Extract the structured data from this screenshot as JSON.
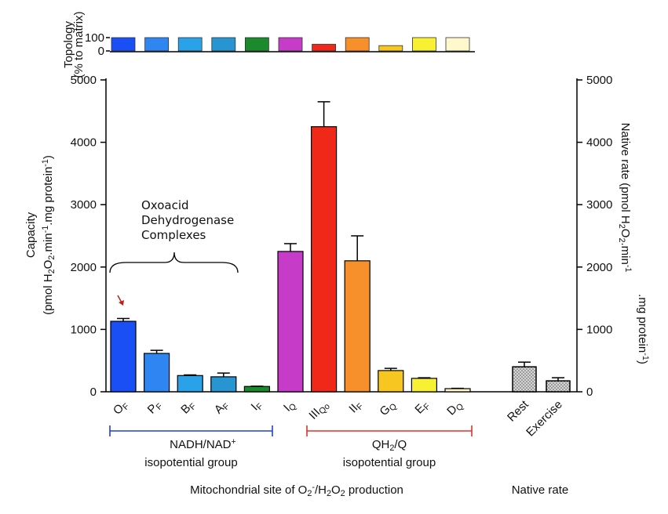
{
  "chart_data": {
    "type": "bar",
    "ylim": [
      0,
      5000
    ],
    "yticks": [
      0,
      1000,
      2000,
      3000,
      4000,
      5000
    ],
    "y2lim": [
      0,
      5000
    ],
    "y2ticks": [
      0,
      1000,
      2000,
      3000,
      4000,
      5000
    ],
    "y_label": [
      "Capacity",
      [
        "(pmol H",
        {
          "text": "2",
          "shift": "sub"
        },
        "O",
        {
          "text": "2",
          "shift": "sub"
        },
        ".min",
        {
          "text": "-1",
          "shift": "super"
        },
        ".mg protein",
        {
          "text": "-1",
          "shift": "super"
        },
        ")"
      ]
    ],
    "y2_label": [
      [
        "Native rate (pmol H",
        {
          "text": "2",
          "shift": "sub"
        },
        "O",
        {
          "text": "2",
          "shift": "sub"
        },
        ".min",
        {
          "text": "-1",
          "shift": "super"
        }
      ],
      [
        ".mg protein",
        {
          "text": "-1",
          "shift": "super"
        },
        ")"
      ]
    ],
    "topology": {
      "label": [
        "Topology",
        "(% to matrix)"
      ],
      "ylim": [
        0,
        100
      ],
      "yticks": [
        0,
        100
      ],
      "values": [
        100,
        100,
        100,
        100,
        100,
        100,
        50,
        100,
        40,
        100,
        100
      ]
    },
    "series": [
      {
        "categories": [
          "O",
          "P",
          "B",
          "A",
          "I",
          "I",
          "III",
          "II",
          "G",
          "E",
          "D"
        ],
        "category_subscripts": [
          "F",
          "F",
          "F",
          "F",
          "F",
          "Q",
          "Qo",
          "F",
          "Q",
          "F",
          "Q"
        ],
        "colors": [
          "#1a4ff5",
          "#2f86f2",
          "#2aa2ea",
          "#2795d2",
          "#1b8a2c",
          "#c63cc9",
          "#f0281a",
          "#f7902a",
          "#f8c620",
          "#f8f032",
          "#fff8cc"
        ],
        "values": [
          1130,
          615,
          260,
          240,
          85,
          2250,
          4250,
          2100,
          340,
          215,
          50
        ],
        "errors": [
          45,
          50,
          10,
          60,
          5,
          125,
          400,
          400,
          35,
          10,
          5
        ]
      },
      {
        "categories": [
          "Rest",
          "Exercise"
        ],
        "color": "#d6d6d6",
        "axis": "y2",
        "values": [
          400,
          175
        ],
        "errors": [
          75,
          50
        ]
      }
    ],
    "annotation": [
      "Oxoacid",
      "Dehydrogenase",
      "Complexes"
    ],
    "groups": [
      {
        "label": [
          "NADH/NAD",
          {
            "text": "+",
            "shift": "super"
          }
        ],
        "sublabel": "isopotential group",
        "color": "#1f3fd0"
      },
      {
        "label": [
          "QH",
          {
            "text": "2",
            "shift": "sub"
          },
          "/Q"
        ],
        "sublabel": "isopotential group",
        "color": "#e0322a"
      }
    ],
    "x_label": [
      "Mitochondrial site of O",
      {
        "text": "2",
        "shift": "sub"
      },
      {
        "text": "-",
        "shift": "super"
      },
      "/H",
      {
        "text": "2",
        "shift": "sub"
      },
      "O",
      {
        "text": "2",
        "shift": "sub"
      },
      " production"
    ],
    "x2_label": "Native rate"
  }
}
